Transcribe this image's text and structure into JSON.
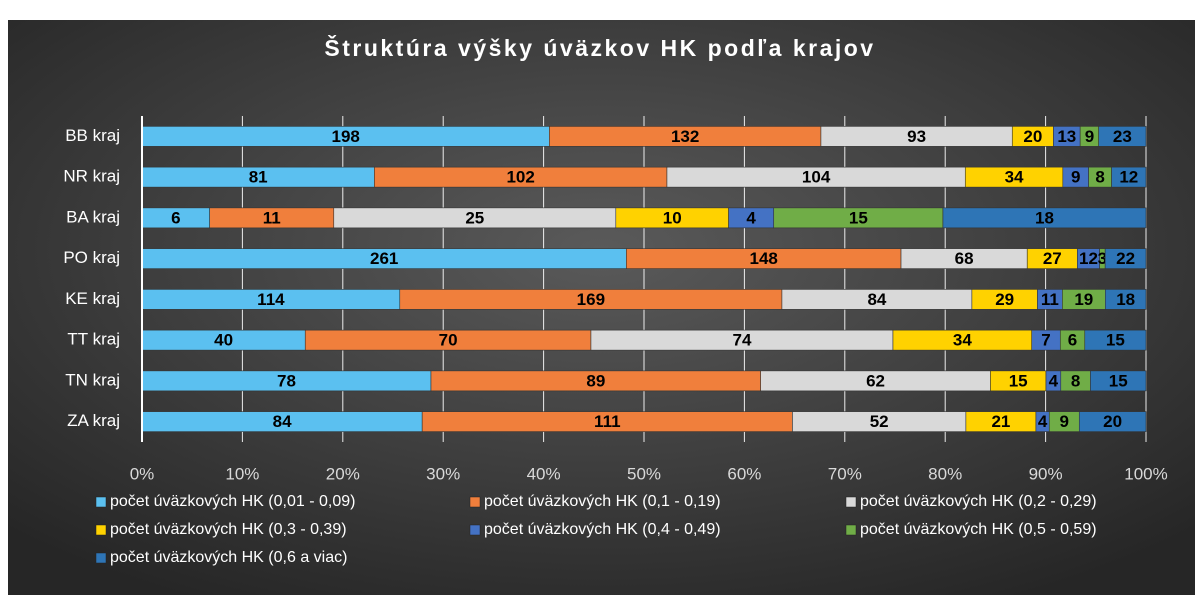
{
  "chart_data": {
    "type": "stacked_percent_barh",
    "title": "Štruktúra výšky úväzkov HK podľa krajov",
    "categories": [
      "BB kraj",
      "NR kraj",
      "BA kraj",
      "PO kraj",
      "KE kraj",
      "TT kraj",
      "TN kraj",
      "ZA kraj"
    ],
    "series": [
      {
        "name": "počet úväzkových HK (0,01 - 0,09)",
        "color": "#5bc0f0",
        "values": [
          198,
          81,
          6,
          261,
          114,
          40,
          78,
          84
        ]
      },
      {
        "name": "počet úväzkových HK (0,1 - 0,19)",
        "color": "#f07f3c",
        "values": [
          132,
          102,
          11,
          148,
          169,
          70,
          89,
          111
        ]
      },
      {
        "name": "počet úväzkových HK (0,2 - 0,29)",
        "color": "#d9d9d9",
        "values": [
          93,
          104,
          25,
          68,
          84,
          74,
          62,
          52
        ]
      },
      {
        "name": "počet úväzkových HK (0,3 - 0,39)",
        "color": "#ffd200",
        "values": [
          20,
          34,
          10,
          27,
          29,
          34,
          15,
          21
        ]
      },
      {
        "name": "počet úväzkových HK (0,4 - 0,49)",
        "color": "#4472c4",
        "values": [
          13,
          9,
          4,
          12,
          11,
          7,
          4,
          4
        ]
      },
      {
        "name": "počet úväzkových HK (0,5 - 0,59)",
        "color": "#70ad47",
        "values": [
          9,
          8,
          15,
          3,
          19,
          6,
          8,
          9
        ]
      },
      {
        "name": "počet úväzkových HK (0,6 a viac)",
        "color": "#2e75b6",
        "values": [
          23,
          12,
          18,
          22,
          18,
          15,
          15,
          20
        ]
      }
    ],
    "xlim": [
      0,
      100
    ],
    "xticks": [
      {
        "value": 0,
        "label": "0%"
      },
      {
        "value": 10,
        "label": "10%"
      },
      {
        "value": 20,
        "label": "20%"
      },
      {
        "value": 30,
        "label": "30%"
      },
      {
        "value": 40,
        "label": "40%"
      },
      {
        "value": 50,
        "label": "50%"
      },
      {
        "value": 60,
        "label": "60%"
      },
      {
        "value": 70,
        "label": "70%"
      },
      {
        "value": 80,
        "label": "80%"
      },
      {
        "value": 90,
        "label": "90%"
      },
      {
        "value": 100,
        "label": "100%"
      }
    ],
    "grid": true,
    "legend": "bottom"
  }
}
